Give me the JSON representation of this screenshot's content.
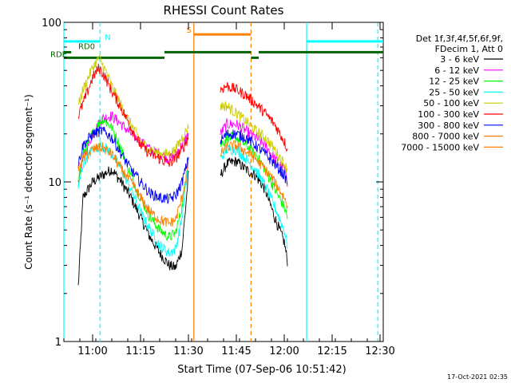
{
  "chart_data": {
    "type": "line",
    "title": "RHESSI Count Rates",
    "xlabel": "Start Time (07-Sep-06 10:51:42)",
    "ylabel": "Count Rate (s⁻¹ detector segment⁻¹)",
    "yscale": "log",
    "ylim": [
      1,
      100
    ],
    "xlim_minutes_after_1051": [
      0,
      100
    ],
    "x_ticks": [
      {
        "label": "11:00",
        "min": 9
      },
      {
        "label": "11:15",
        "min": 24
      },
      {
        "label": "11:30",
        "min": 39
      },
      {
        "label": "11:45",
        "min": 54
      },
      {
        "label": "12:00",
        "min": 69
      },
      {
        "label": "12:15",
        "min": 84
      },
      {
        "label": "12:30",
        "min": 99
      }
    ],
    "y_ticks": [
      {
        "label": "1",
        "value": 1
      },
      {
        "label": "10",
        "value": 10
      },
      {
        "label": "100",
        "value": 100
      }
    ],
    "legend_header": [
      "Det 1f,3f,4f,5f,6f,9f,",
      "FDecim 1, Att 0"
    ],
    "legend_placement": "right",
    "series": [
      {
        "name": "3 - 6 keV",
        "color": "#000000",
        "orbit1": [
          [
            4.5,
            2.2
          ],
          [
            6,
            8
          ],
          [
            9,
            10
          ],
          [
            12,
            11
          ],
          [
            15,
            12
          ],
          [
            18,
            10
          ],
          [
            21,
            8
          ],
          [
            24,
            6
          ],
          [
            27,
            4.5
          ],
          [
            30,
            3.6
          ],
          [
            33,
            3.0
          ],
          [
            35,
            2.9
          ],
          [
            37,
            3.8
          ],
          [
            39,
            11
          ]
        ],
        "orbit2": [
          [
            49,
            11
          ],
          [
            51,
            13
          ],
          [
            54,
            13.5
          ],
          [
            57,
            12
          ],
          [
            60,
            11
          ],
          [
            63,
            9
          ],
          [
            66,
            6
          ],
          [
            69,
            4.2
          ],
          [
            70,
            3.2
          ]
        ]
      },
      {
        "name": "6 - 12 keV",
        "color": "#ff00ff",
        "orbit1": [
          [
            4.5,
            10
          ],
          [
            6,
            14
          ],
          [
            9,
            20
          ],
          [
            12,
            25
          ],
          [
            15,
            26
          ],
          [
            18,
            23
          ],
          [
            21,
            20
          ],
          [
            24,
            18
          ],
          [
            27,
            16
          ],
          [
            30,
            15
          ],
          [
            33,
            14
          ],
          [
            35,
            15
          ],
          [
            37,
            17
          ],
          [
            39,
            20
          ]
        ],
        "orbit2": [
          [
            49,
            20
          ],
          [
            51,
            23
          ],
          [
            54,
            23
          ],
          [
            57,
            21
          ],
          [
            60,
            19
          ],
          [
            63,
            17
          ],
          [
            66,
            14
          ],
          [
            69,
            12
          ],
          [
            70,
            10
          ]
        ]
      },
      {
        "name": "12 - 25 keV",
        "color": "#00ff00",
        "orbit1": [
          [
            4.5,
            10
          ],
          [
            6,
            15
          ],
          [
            9,
            20
          ],
          [
            12,
            25
          ],
          [
            15,
            22
          ],
          [
            18,
            16
          ],
          [
            21,
            11
          ],
          [
            24,
            8
          ],
          [
            27,
            6
          ],
          [
            30,
            5
          ],
          [
            33,
            4.5
          ],
          [
            35,
            4.8
          ],
          [
            37,
            7
          ],
          [
            39,
            14
          ]
        ],
        "orbit2": [
          [
            49,
            17
          ],
          [
            51,
            19
          ],
          [
            54,
            19
          ],
          [
            57,
            17
          ],
          [
            60,
            15
          ],
          [
            63,
            12
          ],
          [
            66,
            9
          ],
          [
            69,
            7
          ],
          [
            70,
            6
          ]
        ]
      },
      {
        "name": "25 - 50 keV",
        "color": "#00ffff",
        "orbit1": [
          [
            4.5,
            9
          ],
          [
            6,
            13
          ],
          [
            9,
            16
          ],
          [
            12,
            17
          ],
          [
            15,
            15
          ],
          [
            18,
            12
          ],
          [
            21,
            9
          ],
          [
            24,
            6.5
          ],
          [
            27,
            5
          ],
          [
            30,
            4
          ],
          [
            33,
            3.6
          ],
          [
            35,
            3.8
          ],
          [
            37,
            6
          ],
          [
            39,
            13
          ]
        ],
        "orbit2": [
          [
            49,
            14
          ],
          [
            51,
            16
          ],
          [
            54,
            16
          ],
          [
            57,
            14
          ],
          [
            60,
            12
          ],
          [
            63,
            9.5
          ],
          [
            66,
            7
          ],
          [
            69,
            5
          ],
          [
            70,
            4
          ]
        ]
      },
      {
        "name": "50 - 100 keV",
        "color": "#cccc00",
        "orbit1": [
          [
            4.5,
            30
          ],
          [
            6,
            38
          ],
          [
            9,
            52
          ],
          [
            11,
            60
          ],
          [
            13,
            50
          ],
          [
            15,
            40
          ],
          [
            18,
            30
          ],
          [
            21,
            23
          ],
          [
            24,
            18
          ],
          [
            27,
            16
          ],
          [
            30,
            15
          ],
          [
            33,
            15
          ],
          [
            35,
            16
          ],
          [
            37,
            19
          ],
          [
            39,
            22
          ]
        ],
        "orbit2": [
          [
            49,
            30
          ],
          [
            51,
            30
          ],
          [
            54,
            27
          ],
          [
            57,
            24
          ],
          [
            60,
            21
          ],
          [
            63,
            19
          ],
          [
            66,
            16
          ],
          [
            69,
            13
          ],
          [
            70,
            12
          ]
        ]
      },
      {
        "name": "100 - 300 keV",
        "color": "#ff0000",
        "orbit1": [
          [
            4.5,
            26
          ],
          [
            6,
            31
          ],
          [
            9,
            45
          ],
          [
            11,
            52
          ],
          [
            13,
            45
          ],
          [
            15,
            37
          ],
          [
            18,
            29
          ],
          [
            21,
            22
          ],
          [
            24,
            17
          ],
          [
            27,
            15
          ],
          [
            30,
            14
          ],
          [
            33,
            13
          ],
          [
            35,
            14
          ],
          [
            37,
            16
          ],
          [
            39,
            19
          ]
        ],
        "orbit2": [
          [
            49,
            38
          ],
          [
            51,
            40
          ],
          [
            54,
            38
          ],
          [
            57,
            35
          ],
          [
            60,
            31
          ],
          [
            63,
            27
          ],
          [
            66,
            23
          ],
          [
            69,
            18
          ],
          [
            70,
            16
          ]
        ]
      },
      {
        "name": "300 - 800 keV",
        "color": "#0000ff",
        "orbit1": [
          [
            4.5,
            13
          ],
          [
            6,
            17
          ],
          [
            9,
            20
          ],
          [
            12,
            21
          ],
          [
            15,
            19
          ],
          [
            18,
            15
          ],
          [
            21,
            12
          ],
          [
            24,
            10
          ],
          [
            27,
            8.5
          ],
          [
            30,
            8
          ],
          [
            33,
            7.8
          ],
          [
            35,
            8.2
          ],
          [
            37,
            10
          ],
          [
            39,
            14
          ]
        ],
        "orbit2": [
          [
            49,
            18
          ],
          [
            51,
            20
          ],
          [
            54,
            20
          ],
          [
            57,
            19
          ],
          [
            60,
            17
          ],
          [
            63,
            15
          ],
          [
            66,
            13
          ],
          [
            69,
            11
          ],
          [
            70,
            10
          ]
        ]
      },
      {
        "name": "800 - 7000 keV",
        "color": "#ff8000",
        "orbit1": [
          [
            4.5,
            12
          ],
          [
            6,
            14
          ],
          [
            9,
            16
          ],
          [
            12,
            16.5
          ],
          [
            15,
            15
          ],
          [
            18,
            12
          ],
          [
            21,
            10
          ],
          [
            24,
            8
          ],
          [
            27,
            6.5
          ],
          [
            30,
            5.8
          ],
          [
            33,
            5.5
          ],
          [
            35,
            5.8
          ],
          [
            37,
            8
          ],
          [
            39,
            13
          ]
        ],
        "orbit2": [
          [
            49,
            15
          ],
          [
            51,
            16.5
          ],
          [
            54,
            17
          ],
          [
            57,
            15.5
          ],
          [
            60,
            14
          ],
          [
            63,
            12
          ],
          [
            66,
            10
          ],
          [
            69,
            8
          ],
          [
            70,
            7
          ]
        ]
      },
      {
        "name": "7000 - 15000 keV",
        "color": "#ff8000",
        "orbit1": [],
        "orbit2": []
      }
    ],
    "flag_bars": [
      {
        "label": "N",
        "color": "#00ffff",
        "segments": [
          [
            0,
            11.3
          ]
        ],
        "value_y": 76
      },
      {
        "label": "",
        "color": "#00ffff",
        "segments": [
          [
            76,
            100
          ]
        ],
        "value_y": 76
      },
      {
        "label": "S",
        "color": "#ff8000",
        "segments": [
          [
            40.7,
            58.6
          ]
        ],
        "value_y": 84
      },
      {
        "label": "RD0",
        "color": "#006400",
        "segments": [
          [
            0,
            2.3
          ],
          [
            31.5,
            58.6
          ],
          [
            61,
            100
          ]
        ],
        "value_y": 65
      },
      {
        "label": "RDE",
        "color": "#006400",
        "segments": [
          [
            0,
            31.5
          ],
          [
            58.6,
            61
          ]
        ],
        "value_y": 60
      }
    ],
    "vertical_lines": [
      {
        "min": 0,
        "color": "#00ffff",
        "style": "solid"
      },
      {
        "min": 11.3,
        "color": "#00ffff",
        "style": "dashed"
      },
      {
        "min": 40.7,
        "color": "#ff8000",
        "style": "solid"
      },
      {
        "min": 58.6,
        "color": "#ff8000",
        "style": "dashed"
      },
      {
        "min": 76,
        "color": "#00ffff",
        "style": "solid"
      },
      {
        "min": 98.3,
        "color": "#00ffff",
        "style": "dashed"
      }
    ],
    "footer_timestamp": "17-Oct-2021 02:35"
  }
}
